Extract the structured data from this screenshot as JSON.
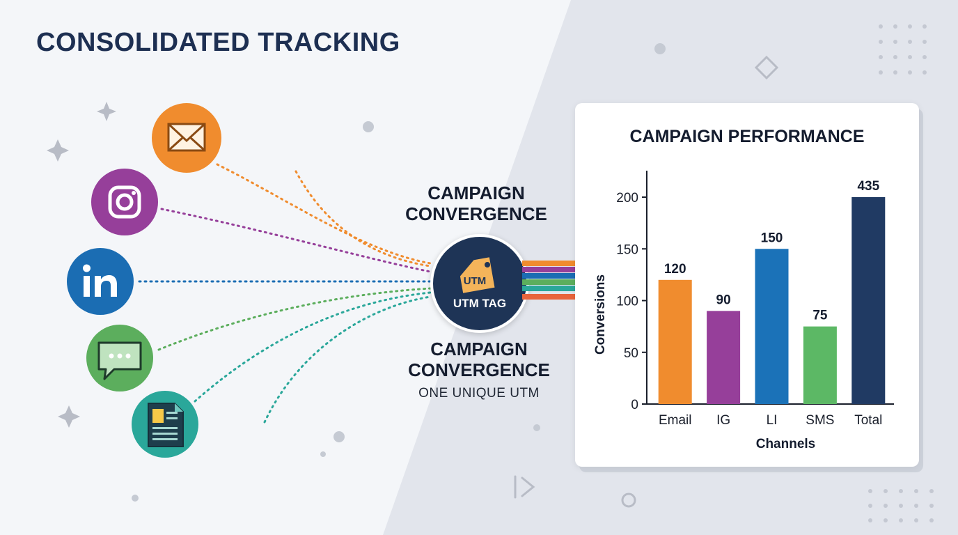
{
  "title": "CONSOLIDATED TRACKING",
  "channels_icons": [
    {
      "name": "email",
      "icon": "envelope-icon",
      "color": "#f08c2e"
    },
    {
      "name": "instagram",
      "icon": "instagram-icon",
      "color": "#963f9a"
    },
    {
      "name": "linkedin",
      "icon": "linkedin-icon",
      "color": "#1b6db3"
    },
    {
      "name": "sms",
      "icon": "chat-bubble-icon",
      "color": "#5cae5d"
    },
    {
      "name": "document",
      "icon": "document-icon",
      "color": "#2aa79a"
    }
  ],
  "convergence": {
    "top_label_line1": "CAMPAIGN",
    "top_label_line2": "CONVERGENCE",
    "bottom_label_line1": "CAMPAIGN",
    "bottom_label_line2": "CONVERGENCE",
    "subtitle": "ONE UNIQUE UTM"
  },
  "hub": {
    "tag_text": "UTM",
    "label": "UTM TAG",
    "color": "#1e3456"
  },
  "chart_data": {
    "type": "bar",
    "title": "CAMPAIGN PERFORMANCE",
    "categories": [
      "Email",
      "IG",
      "LI",
      "SMS",
      "Total"
    ],
    "values": [
      120,
      90,
      150,
      75,
      435
    ],
    "data_labels": [
      "120",
      "90",
      "150",
      "75",
      "435"
    ],
    "colors": [
      "#f08c2e",
      "#963f9a",
      "#1b72b8",
      "#5cb865",
      "#203a63"
    ],
    "xlabel": "Channels",
    "ylabel": "Conversions",
    "ylim": [
      0,
      200
    ],
    "yticks": [
      0,
      50,
      100,
      150,
      200
    ],
    "grid": false,
    "note": "Total bar is drawn clipped at the top of the axis (value 435 exceeds ylim)."
  }
}
